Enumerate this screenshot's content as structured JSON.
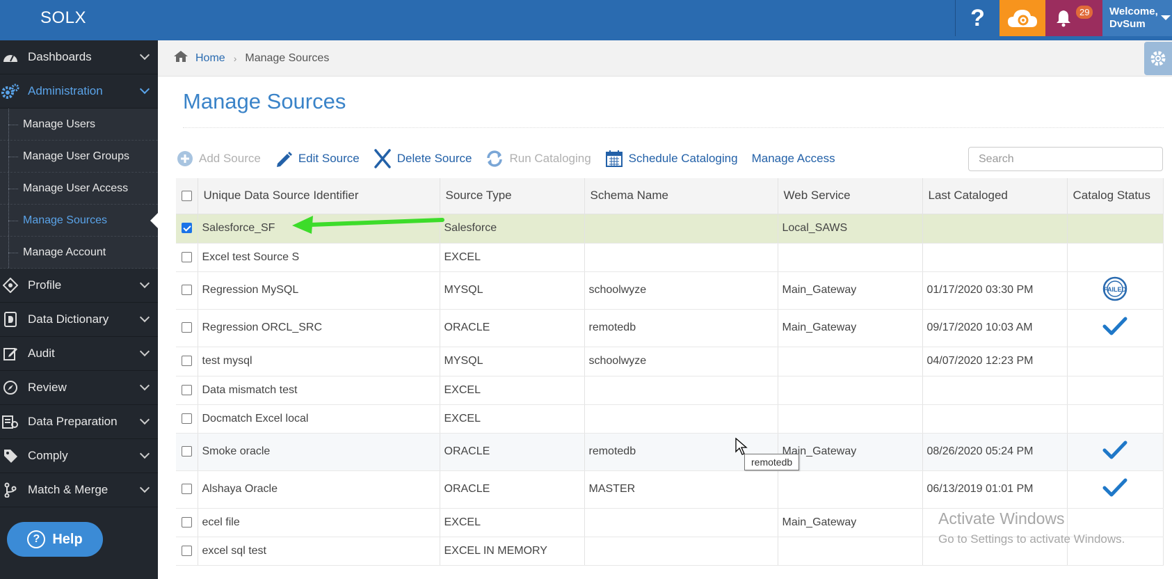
{
  "app": {
    "brand": "SOLX"
  },
  "header": {
    "help_label": "?",
    "notification_count": "29",
    "welcome_line1": "Welcome,",
    "welcome_line2": "DvSum"
  },
  "sidebar": {
    "items": [
      {
        "label": "Dashboards",
        "icon": "dashboard-icon"
      },
      {
        "label": "Administration",
        "icon": "gears-icon",
        "active": true
      },
      {
        "label": "Profile",
        "icon": "crosshair-icon"
      },
      {
        "label": "Data Dictionary",
        "icon": "dictionary-icon"
      },
      {
        "label": "Audit",
        "icon": "edit-icon"
      },
      {
        "label": "Review",
        "icon": "compass-icon"
      },
      {
        "label": "Data Preparation",
        "icon": "preparation-icon"
      },
      {
        "label": "Comply",
        "icon": "tag-icon"
      },
      {
        "label": "Match & Merge",
        "icon": "merge-icon"
      }
    ],
    "admin_sub": [
      {
        "label": "Manage Users"
      },
      {
        "label": "Manage User Groups"
      },
      {
        "label": "Manage User Access"
      },
      {
        "label": "Manage Sources",
        "current": true
      },
      {
        "label": "Manage Account"
      }
    ],
    "help_button": "Help"
  },
  "breadcrumb": {
    "home": "Home",
    "current": "Manage Sources"
  },
  "page": {
    "title": "Manage Sources"
  },
  "toolbar": {
    "add": "Add Source",
    "edit": "Edit Source",
    "delete": "Delete Source",
    "run": "Run Cataloging",
    "schedule": "Schedule Cataloging",
    "access": "Manage Access",
    "search_placeholder": "Search"
  },
  "table": {
    "headers": [
      "Unique Data Source Identifier",
      "Source Type",
      "Schema Name",
      "Web Service",
      "Last Cataloged",
      "Catalog Status"
    ],
    "rows": [
      {
        "id": "Salesforce_SF",
        "type": "Salesforce",
        "schema": "",
        "ws": "Local_SAWS",
        "last": "",
        "status": "",
        "selected": true
      },
      {
        "id": "Excel test Source S",
        "type": "EXCEL",
        "schema": "",
        "ws": "",
        "last": "",
        "status": ""
      },
      {
        "id": "Regression MySQL",
        "type": "MYSQL",
        "schema": "schoolwyze",
        "ws": "Main_Gateway",
        "last": "01/17/2020 03:30 PM",
        "status": "failed"
      },
      {
        "id": "Regression ORCL_SRC",
        "type": "ORACLE",
        "schema": "remotedb",
        "ws": "Main_Gateway",
        "last": "09/17/2020 10:03 AM",
        "status": "success"
      },
      {
        "id": "test mysql",
        "type": "MYSQL",
        "schema": "schoolwyze",
        "ws": "",
        "last": "04/07/2020 12:23 PM",
        "status": ""
      },
      {
        "id": "Data mismatch test",
        "type": "EXCEL",
        "schema": "",
        "ws": "",
        "last": "",
        "status": ""
      },
      {
        "id": "Docmatch Excel local",
        "type": "EXCEL",
        "schema": "",
        "ws": "",
        "last": "",
        "status": ""
      },
      {
        "id": "Smoke oracle",
        "type": "ORACLE",
        "schema": "remotedb",
        "ws": "Main_Gateway",
        "last": "08/26/2020 05:24 PM",
        "status": "success"
      },
      {
        "id": "Alshaya Oracle",
        "type": "ORACLE",
        "schema": "MASTER",
        "ws": "",
        "last": "06/13/2019 01:01 PM",
        "status": "success"
      },
      {
        "id": "ecel file",
        "type": "EXCEL",
        "schema": "",
        "ws": "Main_Gateway",
        "last": "",
        "status": ""
      },
      {
        "id": "excel sql test",
        "type": "EXCEL IN MEMORY",
        "schema": "",
        "ws": "",
        "last": "",
        "status": ""
      }
    ],
    "row_heights": [
      42,
      41,
      54,
      54,
      42,
      41,
      41,
      54,
      54,
      41,
      41
    ]
  },
  "tooltip": "remotedb",
  "watermark": {
    "line1": "Activate Windows",
    "line2": "Go to Settings to activate Windows."
  },
  "colors": {
    "topbar": "#2a6bb0",
    "sidebar": "#22272e",
    "accent": "#3a83c8",
    "selected_row": "#e4ecd0",
    "arrow": "#3ddc2a"
  }
}
